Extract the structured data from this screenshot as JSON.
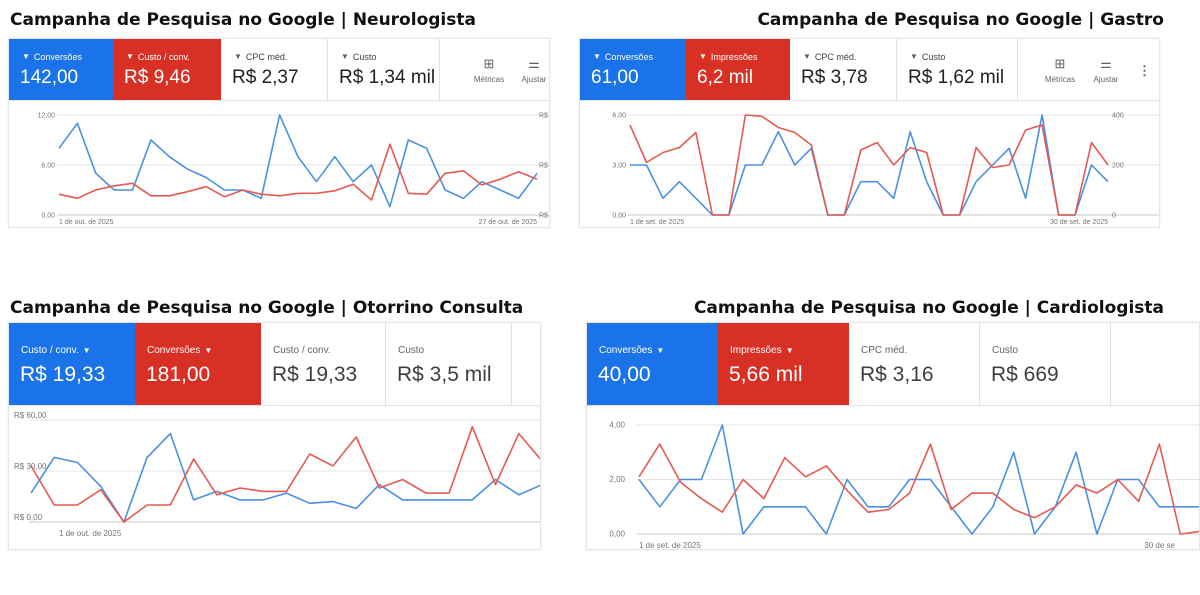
{
  "panels": [
    {
      "id": "p1",
      "title": "Campanha de Pesquisa no Google | Neurologista",
      "metrics": [
        {
          "label": "Conversões",
          "value": "142,00",
          "style": "blue",
          "arrow": true
        },
        {
          "label": "Custo / conv.",
          "value": "R$ 9,46",
          "style": "red",
          "arrow": true
        },
        {
          "label": "CPC méd.",
          "value": "R$ 2,37",
          "style": "gray",
          "arrow": true
        },
        {
          "label": "Custo",
          "value": "R$ 1,34 mil",
          "style": "gray",
          "arrow": true
        }
      ],
      "tools": [
        {
          "label": "Métricas",
          "icon": "metrics-icon"
        },
        {
          "label": "Ajustar",
          "icon": "adjust-icon"
        }
      ],
      "chart_data": {
        "type": "line",
        "y_left_ticks": [
          "12,00",
          "6,00",
          "0,00"
        ],
        "y_left_max": 12,
        "y_right_ticks": [
          "R$",
          "R$",
          "R$"
        ],
        "x_labels": [
          "1 de out. de 2025",
          "27 de out. de 2025"
        ],
        "series": [
          {
            "color": "#4a90e2",
            "values": [
              8,
              11,
              5,
              3,
              3,
              9,
              7,
              5.5,
              4.5,
              3,
              3,
              2,
              12,
              7,
              4,
              7,
              4,
              6,
              1,
              9,
              8,
              3,
              2,
              4,
              3,
              2,
              5
            ]
          },
          {
            "color": "#e55a50",
            "values": [
              2.5,
              2,
              3,
              3.5,
              3.8,
              2.3,
              2.3,
              2.8,
              3.4,
              2.2,
              3,
              2.5,
              2.3,
              2.6,
              2.6,
              2.9,
              3.7,
              1.8,
              8.5,
              2.6,
              2.5,
              5,
              5.3,
              3.6,
              4.3,
              5.2,
              4.3
            ]
          }
        ]
      }
    },
    {
      "id": "p2",
      "title": "Campanha de Pesquisa no Google | Gastro",
      "metrics": [
        {
          "label": "Conversões",
          "value": "61,00",
          "style": "blue",
          "arrow": true
        },
        {
          "label": "Impressões",
          "value": "6,2 mil",
          "style": "red",
          "arrow": true
        },
        {
          "label": "CPC méd.",
          "value": "R$ 3,78",
          "style": "gray",
          "arrow": true
        },
        {
          "label": "Custo",
          "value": "R$ 1,62 mil",
          "style": "gray",
          "arrow": true
        }
      ],
      "tools": [
        {
          "label": "Métricas",
          "icon": "metrics-icon"
        },
        {
          "label": "Ajustar",
          "icon": "adjust-icon"
        }
      ],
      "chart_data": {
        "type": "line",
        "y_left_ticks": [
          "6,00",
          "3,00",
          "0,00"
        ],
        "y_left_max": 6,
        "y_right_ticks": [
          "400",
          "200",
          "0"
        ],
        "x_labels": [
          "1 de set. de 2025",
          "30 de set. de 2025"
        ],
        "series": [
          {
            "color": "#4a90e2",
            "values": [
              3,
              3,
              1,
              2,
              1,
              0,
              0,
              3,
              3,
              5,
              3,
              4,
              0,
              0,
              2,
              2,
              1,
              5,
              2,
              0,
              0,
              2,
              3,
              4,
              1,
              6,
              0,
              0,
              3,
              2
            ]
          },
          {
            "color": "#e55a50",
            "values": [
              360,
              210,
              250,
              270,
              330,
              0,
              0,
              400,
              395,
              350,
              330,
              280,
              0,
              0,
              260,
              290,
              200,
              270,
              250,
              0,
              0,
              270,
              190,
              200,
              340,
              360,
              0,
              0,
              290,
              200
            ]
          }
        ]
      }
    },
    {
      "id": "p3",
      "title": "Campanha de Pesquisa no Google | Otorrino Consulta",
      "metrics": [
        {
          "label": "Custo / conv.",
          "value": "R$ 19,33",
          "style": "blue",
          "arrow": true
        },
        {
          "label": "Conversões",
          "value": "181,00",
          "style": "red",
          "arrow": true
        },
        {
          "label": "Custo / conv.",
          "value": "R$ 19,33",
          "style": "gray",
          "arrow": false
        },
        {
          "label": "Custo",
          "value": "R$ 3,5 mil",
          "style": "gray",
          "arrow": false
        }
      ],
      "tools": [],
      "chart_data": {
        "type": "line",
        "y_left_ticks": [
          "R$ 60,00",
          "R$ 30,00",
          "R$ 0,00"
        ],
        "y_left_max": 60,
        "y_right_ticks": [],
        "x_labels": [
          "1 de out. de 2025"
        ],
        "series": [
          {
            "color": "#4a90e2",
            "values": [
              17,
              38,
              35,
              21,
              0,
              38,
              52,
              13,
              18,
              13,
              13,
              17,
              11,
              12,
              8,
              22,
              13,
              13,
              13,
              13,
              25,
              16,
              22
            ]
          },
          {
            "color": "#e55a50",
            "values": [
              33,
              10,
              10,
              19,
              0,
              10,
              10,
              37,
              16,
              20,
              18,
              18,
              40,
              33,
              50,
              20,
              25,
              17,
              17,
              56,
              22,
              52,
              36
            ]
          }
        ]
      }
    },
    {
      "id": "p4",
      "title": "Campanha de Pesquisa no Google | Cardiologista",
      "metrics": [
        {
          "label": "Conversões",
          "value": "40,00",
          "style": "blue",
          "arrow": true
        },
        {
          "label": "Impressões",
          "value": "5,66 mil",
          "style": "red",
          "arrow": true
        },
        {
          "label": "CPC méd.",
          "value": "R$ 3,16",
          "style": "gray",
          "arrow": false
        },
        {
          "label": "Custo",
          "value": "R$ 669",
          "style": "gray",
          "arrow": false
        }
      ],
      "tools": [],
      "chart_data": {
        "type": "line",
        "y_left_ticks": [
          "4,00",
          "2,00",
          "0,00"
        ],
        "y_left_max": 4,
        "y_right_ticks": [],
        "x_labels": [
          "1 de set. de 2025",
          "30 de se"
        ],
        "series": [
          {
            "color": "#4a90e2",
            "values": [
              2,
              1,
              2,
              2,
              4,
              0,
              1,
              1,
              1,
              0,
              2,
              1,
              1,
              2,
              2,
              1,
              0,
              1,
              3,
              0,
              1,
              3,
              0,
              2,
              2,
              1,
              1,
              1
            ]
          },
          {
            "color": "#e55a50",
            "values": [
              2.1,
              3.3,
              1.9,
              1.3,
              0.8,
              2,
              1.3,
              2.8,
              2.1,
              2.5,
              1.6,
              0.8,
              0.9,
              1.5,
              3.3,
              0.9,
              1.5,
              1.5,
              0.9,
              0.6,
              1,
              1.8,
              1.5,
              2,
              1.2,
              3.3,
              0,
              0.1
            ]
          }
        ]
      }
    }
  ]
}
